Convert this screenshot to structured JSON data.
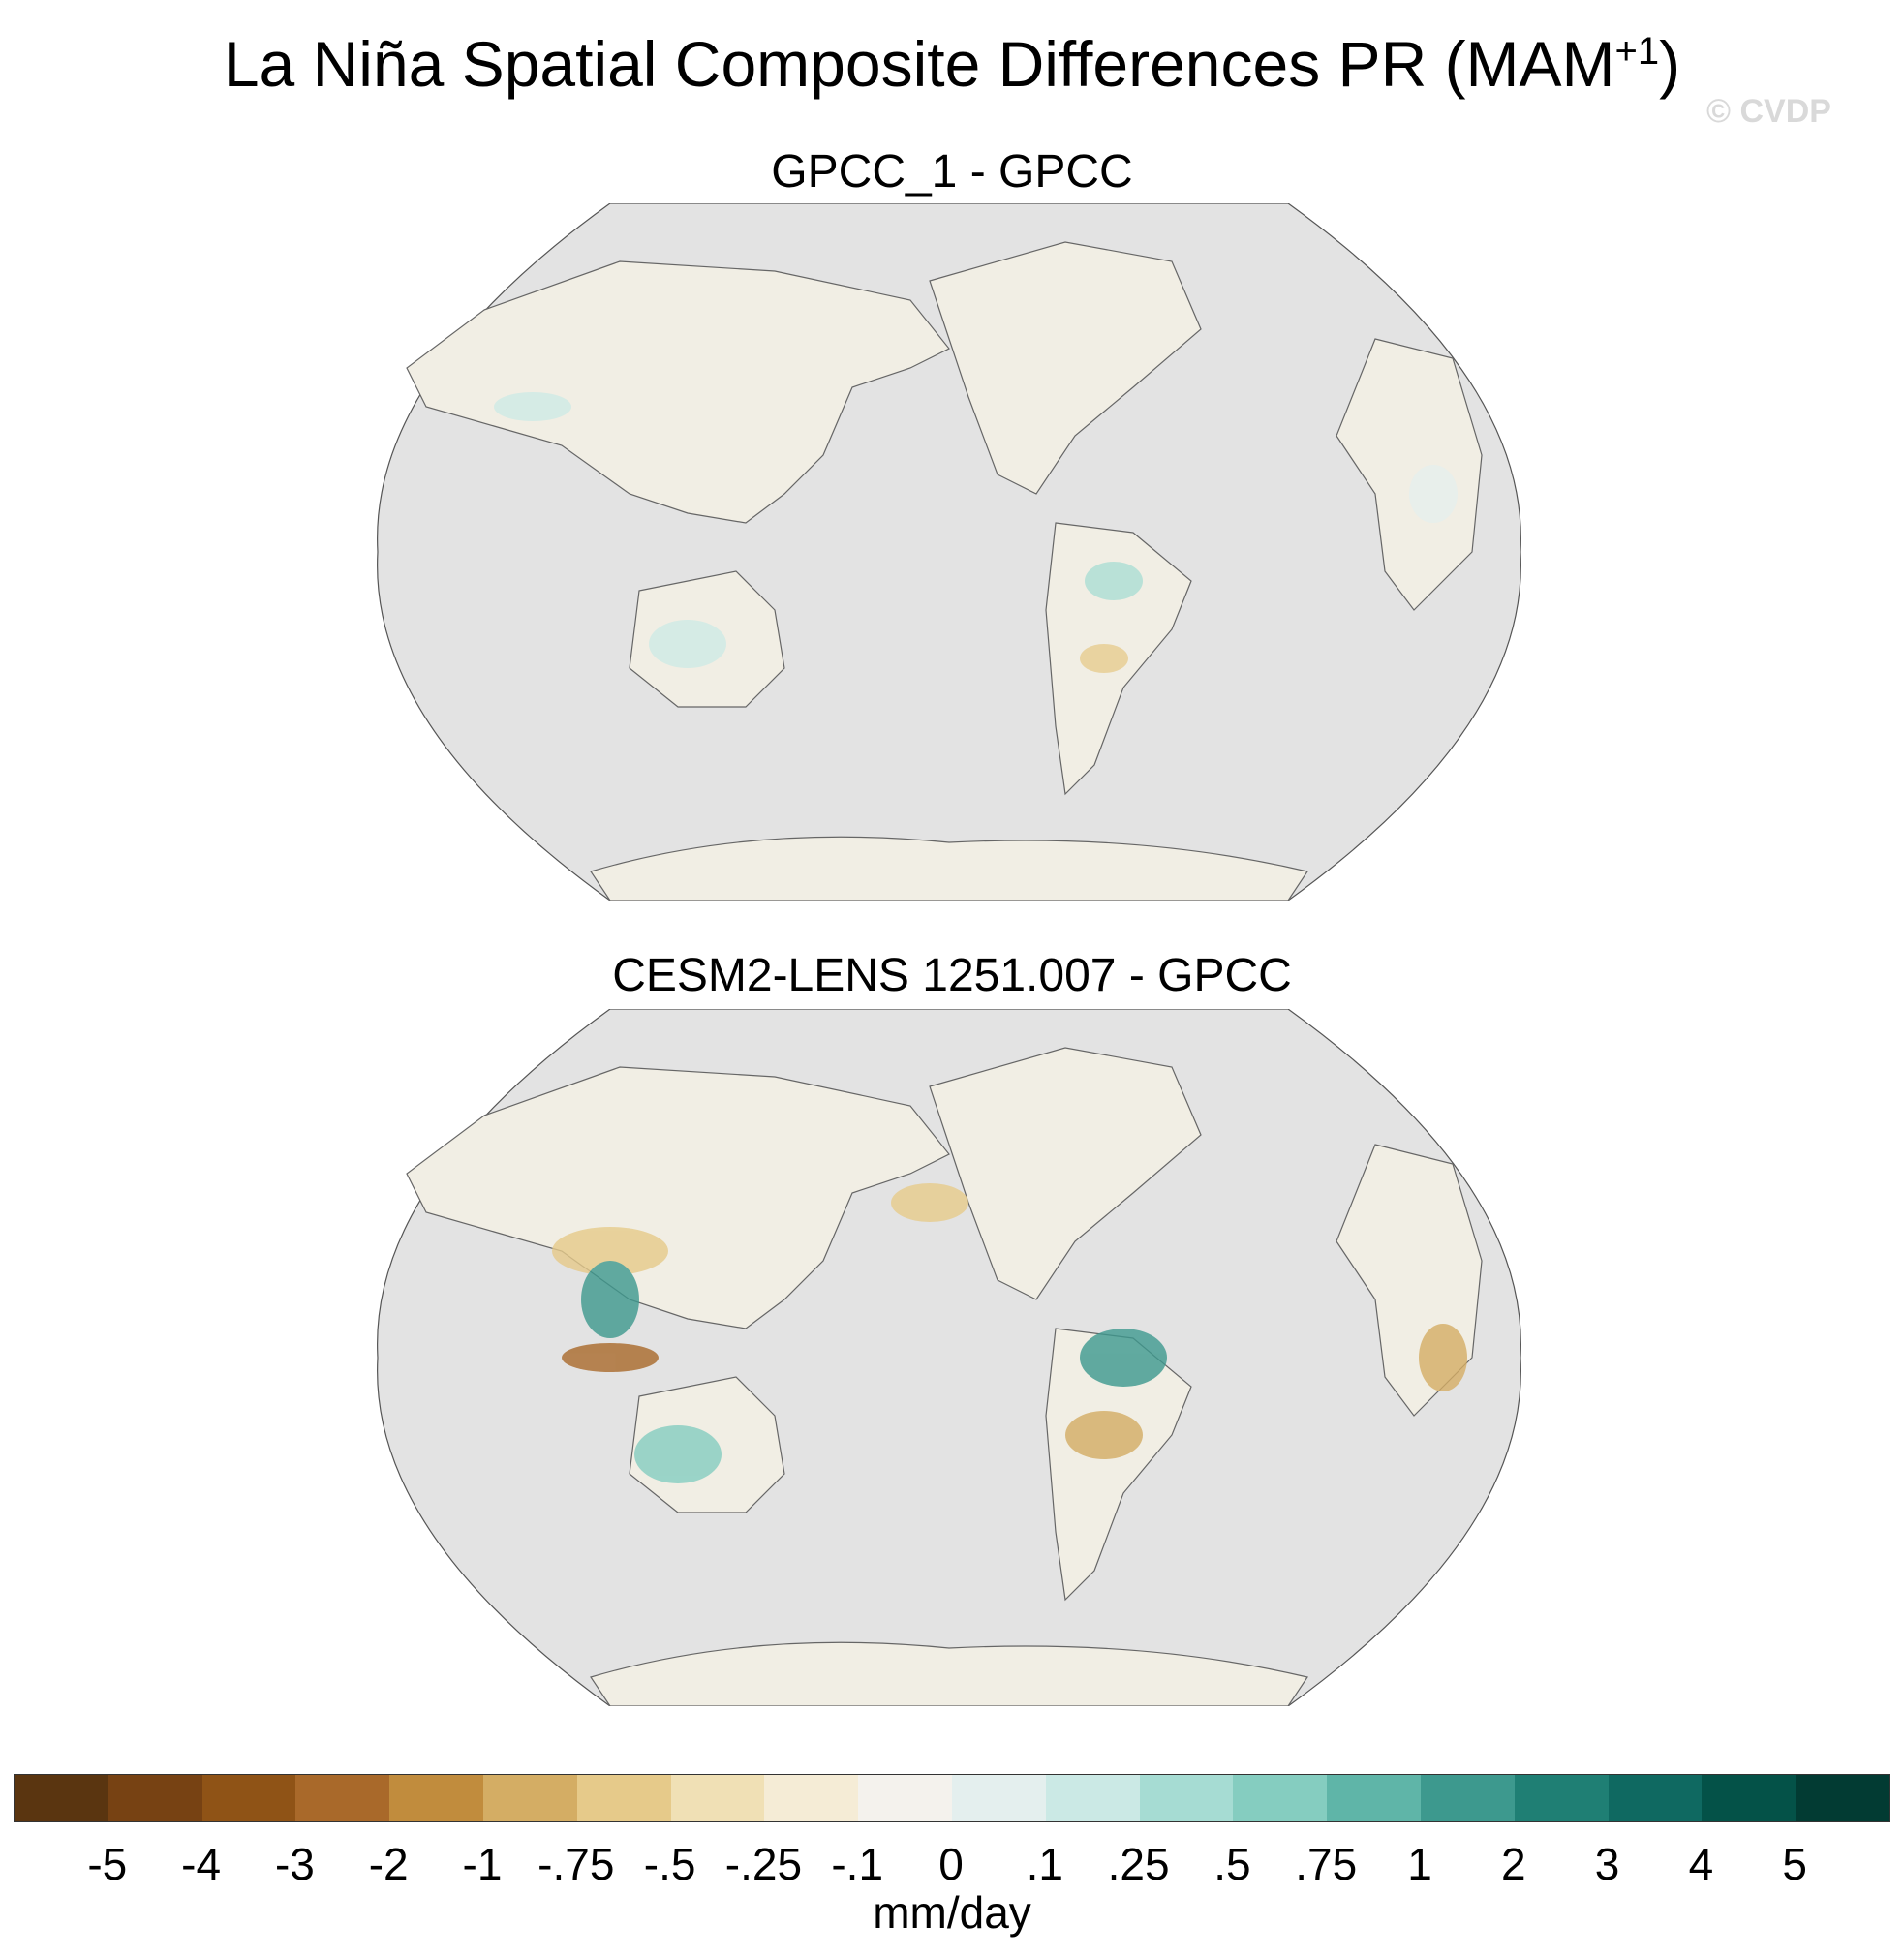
{
  "figure": {
    "title_main": "La Niña Spatial Composite Differences PR (MAM",
    "title_sup": "+1",
    "title_end": ")",
    "copyright": "© CVDP"
  },
  "panels": [
    {
      "title": "GPCC_1 - GPCC"
    },
    {
      "title": "CESM2-LENS 1251.007 - GPCC"
    }
  ],
  "colorbar": {
    "units": "mm/day",
    "tick_labels": [
      "-5",
      "-4",
      "-3",
      "-2",
      "-1",
      "-.75",
      "-.5",
      "-.25",
      "-.1",
      "0",
      ".1",
      ".25",
      ".5",
      ".75",
      "1",
      "2",
      "3",
      "4",
      "5"
    ],
    "colors": [
      "#5a3510",
      "#774213",
      "#8f5316",
      "#a9692a",
      "#c18c3d",
      "#d4ad64",
      "#e6ca8a",
      "#f0e0b5",
      "#f5ecd6",
      "#f4f2ed",
      "#e4efee",
      "#cbe9e5",
      "#a6dcd3",
      "#85cdc0",
      "#5fb5a8",
      "#3d998e",
      "#1f7f74",
      "#0f6961",
      "#045248",
      "#023b33"
    ],
    "land_color": "#e3e3e3"
  }
}
